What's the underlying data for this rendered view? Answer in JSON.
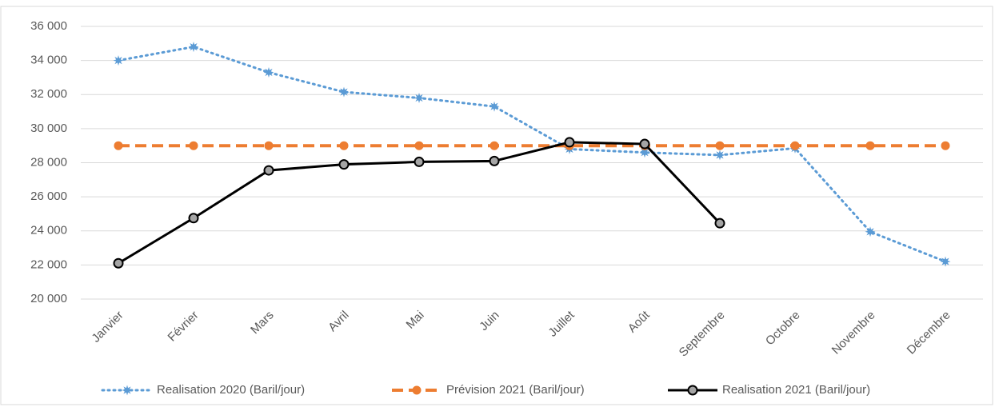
{
  "chart_data": {
    "type": "line",
    "categories": [
      "Janvier",
      "Février",
      "Mars",
      "Avril",
      "Mai",
      "Juin",
      "Juillet",
      "Août",
      "Septembre",
      "Octobre",
      "Novembre",
      "Décembre"
    ],
    "series": [
      {
        "name": "Realisation 2020 (Baril/jour)",
        "color": "#5b9bd5",
        "style": "dotted",
        "marker": "star",
        "values": [
          34000,
          34800,
          33300,
          32150,
          31800,
          31300,
          28800,
          28600,
          28450,
          28850,
          23950,
          22200
        ]
      },
      {
        "name": "Prévision 2021 (Baril/jour)",
        "color": "#ed7d31",
        "style": "dashed",
        "marker": "circle",
        "values": [
          29000,
          29000,
          29000,
          29000,
          29000,
          29000,
          29000,
          29000,
          29000,
          29000,
          29000,
          29000
        ]
      },
      {
        "name": "Realisation 2021 (Baril/jour)",
        "color": "#000000",
        "style": "solid",
        "marker": "circle",
        "values": [
          22100,
          24750,
          27550,
          27900,
          28050,
          28100,
          29200,
          29100,
          24450,
          null,
          null,
          null
        ]
      }
    ],
    "ylim": [
      20000,
      36000
    ],
    "yticks": [
      {
        "value": 20000,
        "label": "20 000"
      },
      {
        "value": 22000,
        "label": "22 000"
      },
      {
        "value": 24000,
        "label": "24 000"
      },
      {
        "value": 26000,
        "label": "26 000"
      },
      {
        "value": 28000,
        "label": "28 000"
      },
      {
        "value": 30000,
        "label": "30 000"
      },
      {
        "value": 32000,
        "label": "32 000"
      },
      {
        "value": 34000,
        "label": "34 000"
      },
      {
        "value": 36000,
        "label": "36 000"
      }
    ],
    "grid": true,
    "legend": "bottom"
  }
}
